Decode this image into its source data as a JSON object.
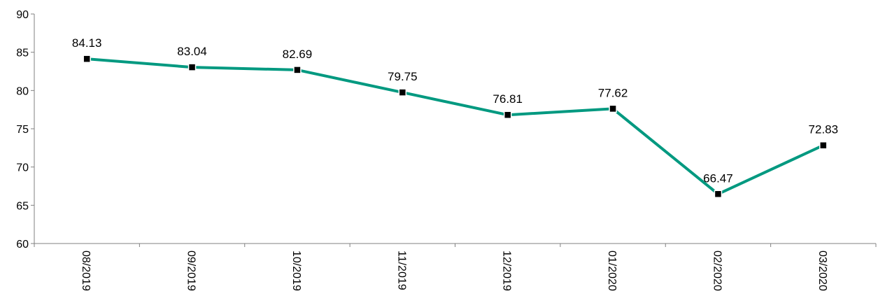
{
  "chart_data": {
    "type": "line",
    "title": "",
    "xlabel": "",
    "ylabel": "",
    "categories": [
      "08/2019",
      "09/2019",
      "10/2019",
      "11/2019",
      "12/2019",
      "01/2020",
      "02/2020",
      "03/2020"
    ],
    "series": [
      {
        "values": [
          84.13,
          83.04,
          82.69,
          79.75,
          76.81,
          77.62,
          66.47,
          72.83
        ],
        "data_labels": [
          "84.13",
          "83.04",
          "82.69",
          "79.75",
          "76.81",
          "77.62",
          "66.47",
          "72.83"
        ],
        "color": "#009980",
        "marker": "square",
        "marker_color": "#000000"
      }
    ],
    "ylim": [
      60,
      90
    ],
    "yticks": [
      "60",
      "65",
      "70",
      "75",
      "80",
      "85",
      "90"
    ],
    "ytick_values": [
      60,
      65,
      70,
      75,
      80,
      85,
      90
    ],
    "grid": false,
    "legend": "none",
    "xtick_rotation": "vertical"
  }
}
